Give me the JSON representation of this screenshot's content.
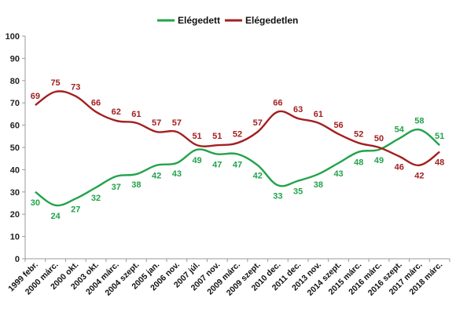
{
  "chart_data": {
    "type": "line",
    "categories": [
      "1999 febr.",
      "2000 márc.",
      "2000 okt.",
      "2003 okt.",
      "2004 márc.",
      "2004 szept.",
      "2005 jan.",
      "2006 nov.",
      "2007 júl.",
      "2007 nov.",
      "2009 márc.",
      "2009 szept.",
      "2010 dec.",
      "2011 dec.",
      "2013 nov.",
      "2014 szept.",
      "2015 márc.",
      "2016 márc.",
      "2016 szept.",
      "2017 márc.",
      "2018 márc."
    ],
    "series": [
      {
        "name": "Elégedett",
        "color": "#22a34a",
        "values": [
          30,
          24,
          27,
          32,
          37,
          38,
          42,
          43,
          49,
          47,
          47,
          42,
          33,
          35,
          38,
          43,
          48,
          49,
          54,
          58,
          51
        ]
      },
      {
        "name": "Elégedetlen",
        "color": "#a31f1f",
        "values": [
          69,
          75,
          73,
          66,
          62,
          61,
          57,
          57,
          51,
          51,
          52,
          57,
          66,
          63,
          61,
          56,
          52,
          50,
          46,
          42,
          48
        ]
      }
    ],
    "ylim": [
      0,
      100
    ],
    "yticks": [
      0,
      10,
      20,
      30,
      40,
      50,
      60,
      70,
      80,
      90,
      100
    ],
    "legend": "top-center",
    "grid": false
  }
}
